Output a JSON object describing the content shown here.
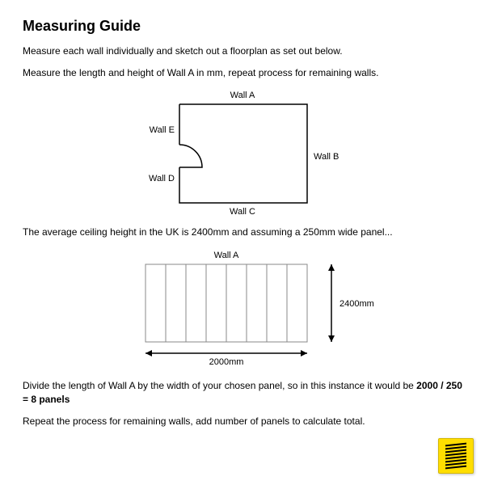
{
  "title": "Measuring Guide",
  "intro1": "Measure each wall individually and sketch out a floorplan as set out below.",
  "intro2": "Measure the length and height of Wall A in mm, repeat process for remaining walls.",
  "floorplan": {
    "labels": {
      "top": "Wall A",
      "right": "Wall B",
      "bottom": "Wall C",
      "left_lower": "Wall D",
      "left_upper": "Wall E"
    },
    "stroke": "#000000",
    "stroke_width": 1.5
  },
  "midtext": "The average ceiling height in the UK is 2400mm and assuming a 250mm wide panel...",
  "panel_diagram": {
    "title": "Wall A",
    "panel_count": 8,
    "width_label": "2000mm",
    "height_label": "2400mm",
    "border_color": "#888888",
    "arrow_stroke": "#000000"
  },
  "calc_prefix": "Divide the length of Wall A by the width of your chosen panel, so in this instance it would be ",
  "calc_bold": "2000 / 250 = 8 panels",
  "outro": "Repeat the process for remaining walls, add number of panels to calculate total.",
  "logo": {
    "bg": "#ffde00",
    "bars": 8,
    "bar_color": "#000000"
  }
}
